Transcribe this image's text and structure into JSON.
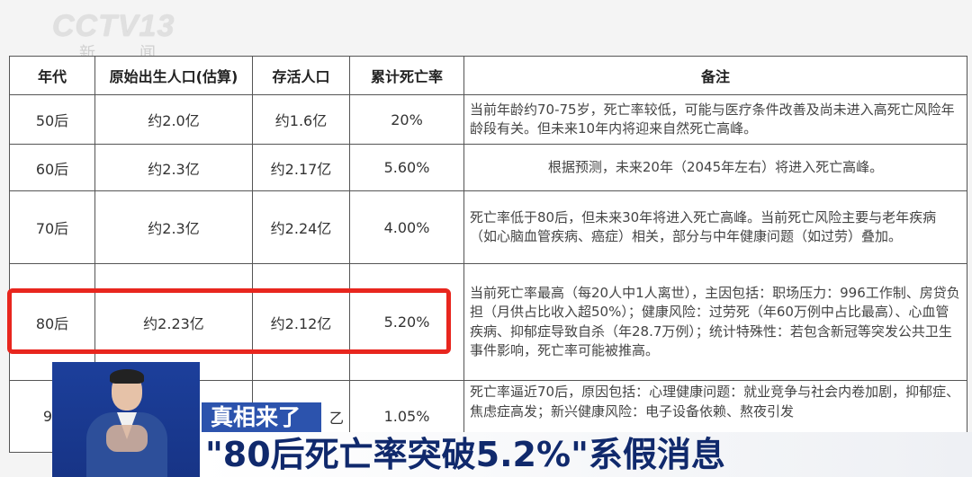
{
  "logo": {
    "brand": "CCTV13",
    "channel": "新 闻"
  },
  "table": {
    "headers": [
      "年代",
      "原始出生人口(估算)",
      "存活人口",
      "累计死亡率",
      "备注"
    ],
    "rows": [
      {
        "era": "50后",
        "births": "约2.0亿",
        "alive": "约1.6亿",
        "rate": "20%",
        "note": "当前年龄约70-75岁，死亡率较低，可能与医疗条件改善及尚未进入高死亡风险年龄段有关。但未来10年内将迎来自然死亡高峰。"
      },
      {
        "era": "60后",
        "births": "约2.3亿",
        "alive": "约2.17亿",
        "rate": "5.60%",
        "note": "根据预测，未来20年（2045年左右）将进入死亡高峰。"
      },
      {
        "era": "70后",
        "births": "约2.3亿",
        "alive": "约2.24亿",
        "rate": "4.00%",
        "note": "死亡率低于80后，但未来30年将进入死亡高峰。当前死亡风险主要与老年疾病（如心脑血管疾病、癌症）相关，部分与中年健康问题（如过劳）叠加。"
      },
      {
        "era": "80后",
        "births": "约2.23亿",
        "alive": "约2.12亿",
        "rate": "5.20%",
        "note": "当前死亡率最高（每20人中1人离世），主因包括：职场压力：996工作制、房贷负担（月供占比收入超50%）；健康风险：过劳死（年60万例中占比最高）、心血管疾病、抑郁症导致自杀（年28.7万例）；统计特殊性：若包含新冠等突发公共卫生事件影响，死亡率可能被推高。"
      },
      {
        "era": "90",
        "births": "",
        "alive": "乙",
        "rate": "1.05%",
        "note": "死亡率逼近70后，原因包括：心理健康问题：就业竞争与社会内卷加剧，抑郁症、焦虑症高发；新兴健康风险：电子设备依赖、熬夜引发"
      }
    ]
  },
  "highlight_color": "#e8261e",
  "caption": {
    "tag": "真相来了",
    "headline": "\"80后死亡率突破5.2%\"系假消息"
  }
}
